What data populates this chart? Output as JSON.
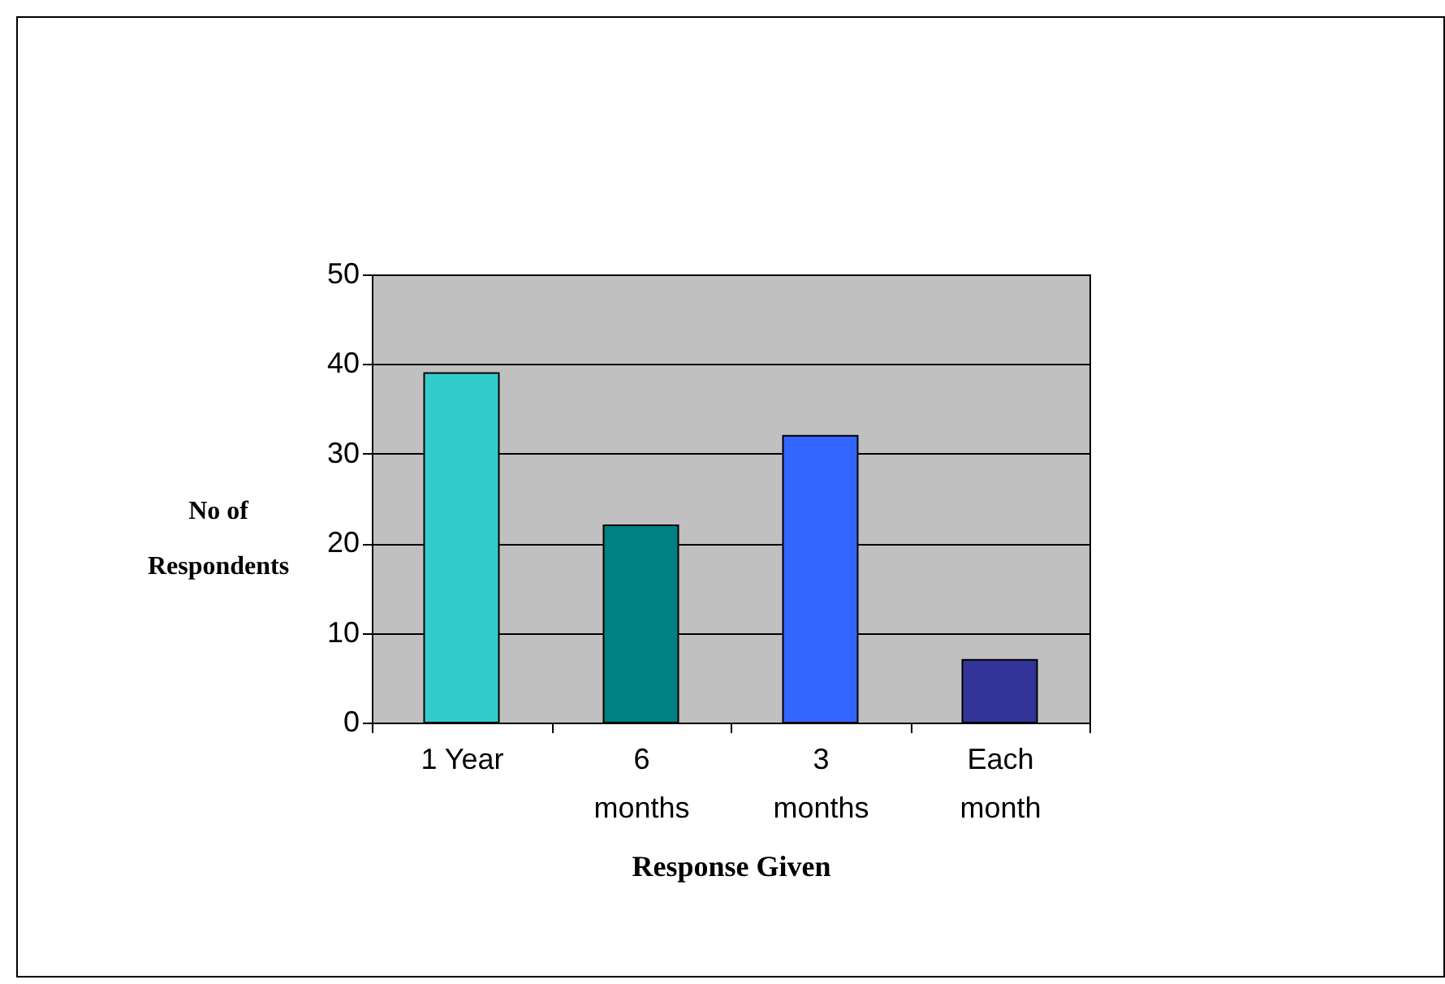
{
  "chart_data": {
    "type": "bar",
    "xlabel": "Response Given",
    "ylabel": "No of Respondents",
    "categories": [
      "1 Year",
      "6 months",
      "3 months",
      "Each month"
    ],
    "values": [
      39,
      22,
      32,
      7
    ],
    "colors": [
      "#33cccc",
      "#008080",
      "#3366ff",
      "#333399"
    ],
    "ylim": [
      0,
      50
    ],
    "yticks": [
      0,
      10,
      20,
      30,
      40,
      50
    ],
    "grid": "y"
  }
}
